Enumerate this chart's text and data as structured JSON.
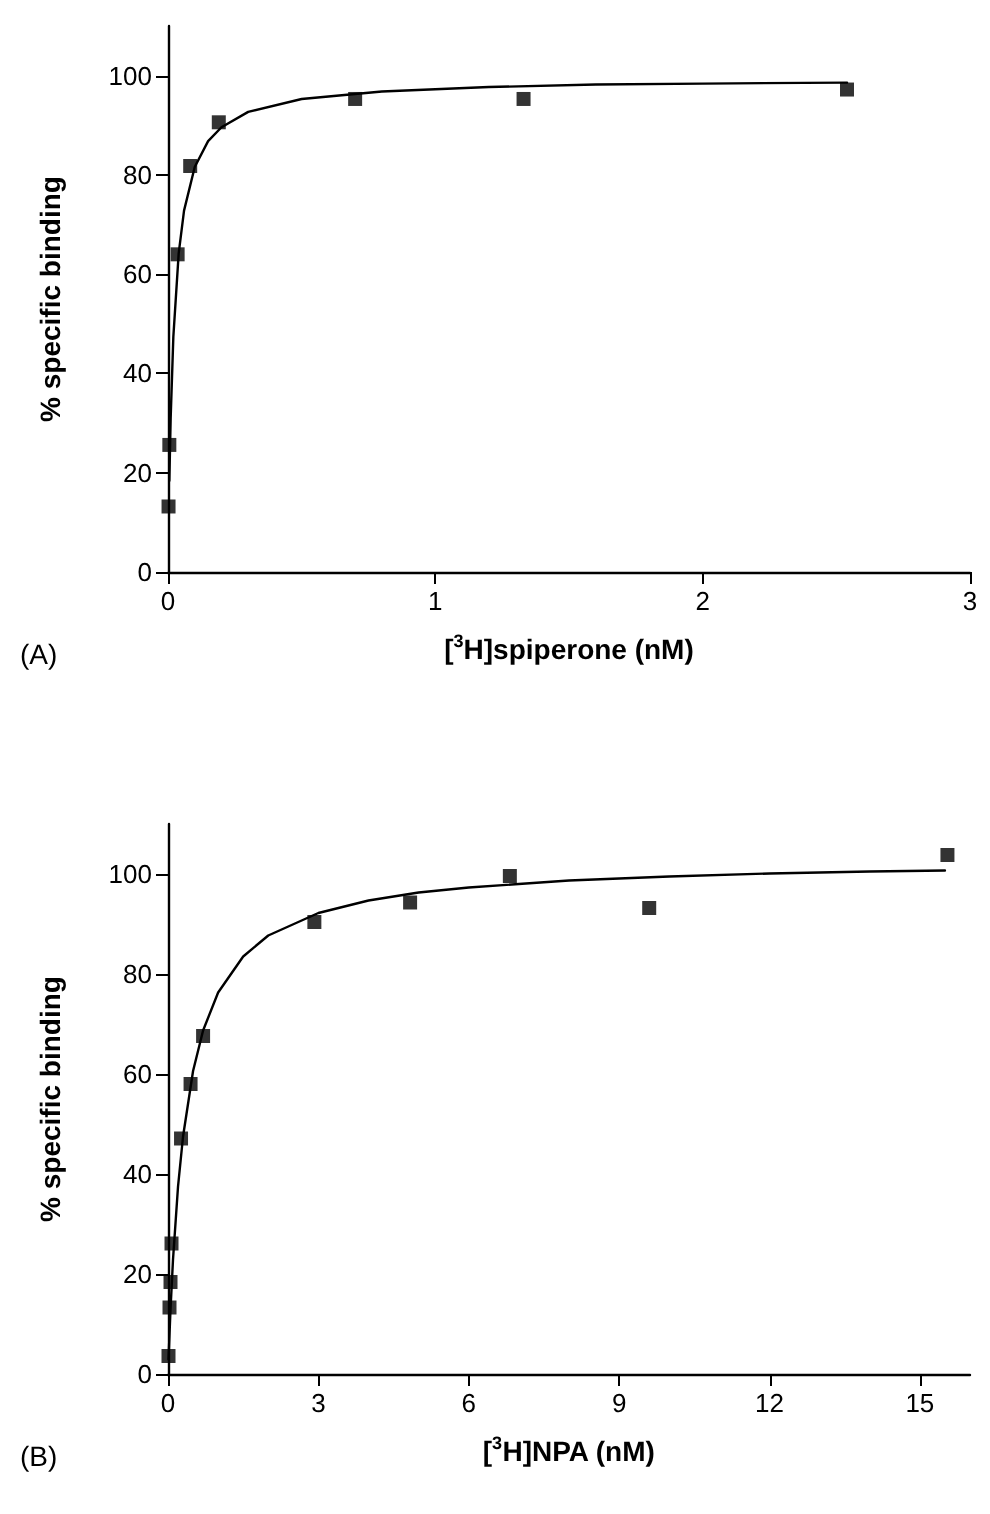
{
  "chart_data": [
    {
      "type": "scatter",
      "xlabel": "[$^{3}$H]spiperone (nM)",
      "ylabel": "% specific binding",
      "annotations": [
        "(A)"
      ],
      "xlim": [
        0,
        3
      ],
      "xticks": [
        0,
        1,
        2,
        3
      ],
      "ylim": [
        0,
        110
      ],
      "yticks": [
        0,
        20,
        40,
        60,
        80,
        100
      ],
      "grid": false,
      "marker": "square",
      "series": [
        {
          "type": "scatter",
          "color": "#000000",
          "x": [
            0.002,
            0.005,
            0.036,
            0.083,
            0.19,
            0.7,
            1.33,
            2.54
          ],
          "values": [
            13.2,
            25.6,
            64.0,
            81.8,
            90.6,
            95.3,
            95.3,
            97.2
          ]
        },
        {
          "type": "line",
          "color": "#000000",
          "marker": "none",
          "line_style": "solid",
          "x": [
            0.005,
            0.01,
            0.02,
            0.04,
            0.06,
            0.1,
            0.15,
            0.2,
            0.3,
            0.5,
            0.8,
            1.2,
            1.6,
            2,
            2.54
          ],
          "values": [
            18.4,
            31.1,
            47.4,
            64.2,
            72.8,
            81.6,
            86.8,
            89.6,
            92.7,
            95.3,
            96.8,
            97.7,
            98.2,
            98.4,
            98.6
          ]
        }
      ]
    },
    {
      "type": "scatter",
      "xlabel": "[$^{3}$H]NPA (nM)",
      "ylabel": "% specific binding",
      "annotations": [
        "(B)"
      ],
      "xlim": [
        0,
        16
      ],
      "xticks": [
        0,
        3,
        6,
        9,
        12,
        15
      ],
      "ylim": [
        0,
        110
      ],
      "yticks": [
        0,
        20,
        40,
        60,
        80,
        100
      ],
      "grid": false,
      "marker": "square",
      "series": [
        {
          "type": "scatter",
          "color": "#000000",
          "x": [
            0.01,
            0.03,
            0.05,
            0.07,
            0.26,
            0.45,
            0.7,
            2.92,
            4.83,
            6.82,
            9.6,
            15.55
          ],
          "values": [
            3.6,
            13.3,
            18.4,
            26.1,
            47.1,
            58.0,
            67.6,
            90.4,
            94.3,
            99.6,
            93.2,
            103.8
          ]
        },
        {
          "type": "line",
          "color": "#000000",
          "marker": "none",
          "line_style": "solid",
          "x": [
            0.01,
            0.05,
            0.1,
            0.2,
            0.3,
            0.5,
            0.7,
            1,
            1.5,
            2,
            3,
            4,
            5,
            6,
            8,
            10,
            12,
            14,
            15.5
          ],
          "values": [
            2.9,
            12.9,
            22.9,
            37.5,
            47.5,
            60.6,
            68.7,
            76.3,
            83.5,
            87.7,
            92.2,
            94.7,
            96.3,
            97.3,
            98.7,
            99.5,
            100.1,
            100.5,
            100.7
          ]
        }
      ]
    }
  ]
}
